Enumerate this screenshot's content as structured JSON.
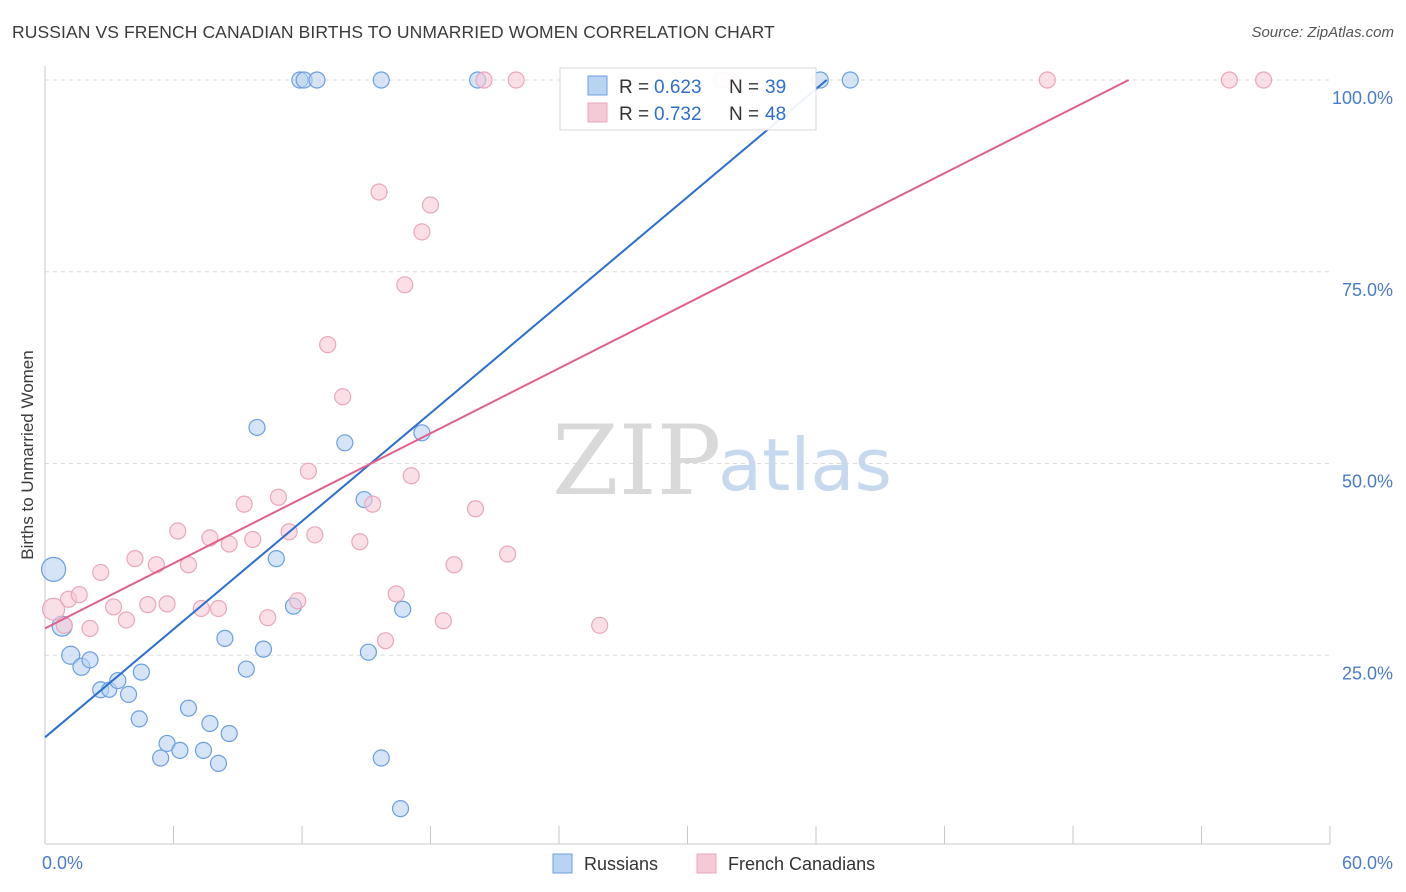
{
  "title": "RUSSIAN VS FRENCH CANADIAN BIRTHS TO UNMARRIED WOMEN CORRELATION CHART",
  "source": "Source: ZipAtlas.com",
  "watermark": {
    "zip": "ZIP",
    "atlas": "atlas"
  },
  "chart_data": {
    "type": "scatter",
    "ylabel": "Births to Unmarried Women",
    "xlim": [
      0,
      60
    ],
    "ylim": [
      0,
      100
    ],
    "x_ticks": [
      "0.0%",
      "60.0%"
    ],
    "y_ticks": [
      {
        "value": 25,
        "label": "25.0%"
      },
      {
        "value": 50,
        "label": "50.0%"
      },
      {
        "value": 75,
        "label": "75.0%"
      },
      {
        "value": 100,
        "label": "100.0%"
      }
    ],
    "grid": true,
    "legend_position": "top-center",
    "series": [
      {
        "name": "Russians",
        "color": "#6b9fe0",
        "fill": "#b9d3f2",
        "line_color": "#2a6fd0",
        "R": "0.623",
        "N": "39",
        "trend": [
          [
            0,
            14.3
          ],
          [
            36.5,
            100
          ]
        ],
        "points": [
          [
            0.4,
            36.2,
            24
          ],
          [
            0.8,
            28.8,
            20
          ],
          [
            1.2,
            25.0,
            18
          ],
          [
            1.7,
            23.5,
            17
          ],
          [
            2.1,
            24.4,
            16
          ],
          [
            2.6,
            20.5,
            16
          ],
          [
            3.0,
            20.5,
            15
          ],
          [
            3.4,
            21.7,
            16
          ],
          [
            3.9,
            19.9,
            16
          ],
          [
            4.5,
            22.8,
            16
          ],
          [
            4.4,
            16.7,
            16
          ],
          [
            5.4,
            11.6,
            16
          ],
          [
            5.7,
            13.5,
            16
          ],
          [
            6.3,
            12.6,
            16
          ],
          [
            6.7,
            18.1,
            16
          ],
          [
            7.4,
            12.6,
            16
          ],
          [
            7.7,
            16.1,
            16
          ],
          [
            8.1,
            10.9,
            16
          ],
          [
            8.4,
            27.2,
            16
          ],
          [
            8.6,
            14.8,
            16
          ],
          [
            9.4,
            23.2,
            16
          ],
          [
            9.9,
            54.7,
            16
          ],
          [
            10.2,
            25.8,
            16
          ],
          [
            10.8,
            37.6,
            16
          ],
          [
            11.6,
            31.4,
            16
          ],
          [
            11.9,
            100,
            16
          ],
          [
            12.1,
            100,
            16
          ],
          [
            12.7,
            100,
            16
          ],
          [
            14.0,
            52.7,
            16
          ],
          [
            14.9,
            45.3,
            16
          ],
          [
            15.1,
            25.4,
            16
          ],
          [
            15.7,
            100,
            16
          ],
          [
            15.7,
            11.6,
            16
          ],
          [
            16.6,
            5.0,
            16
          ],
          [
            16.7,
            31.0,
            16
          ],
          [
            17.6,
            54.0,
            16
          ],
          [
            20.2,
            100,
            16
          ],
          [
            36.2,
            100,
            16
          ],
          [
            37.6,
            100,
            16
          ]
        ]
      },
      {
        "name": "French Canadians",
        "color": "#e8a7bb",
        "fill": "#f6c9d6",
        "line_color": "#e0608b",
        "R": "0.732",
        "N": "48",
        "trend": [
          [
            0,
            28.5
          ],
          [
            50.6,
            100
          ]
        ],
        "points": [
          [
            0.4,
            31.0,
            22
          ],
          [
            0.9,
            28.9,
            16
          ],
          [
            1.1,
            32.3,
            16
          ],
          [
            1.6,
            32.9,
            16
          ],
          [
            2.1,
            28.5,
            16
          ],
          [
            2.6,
            35.8,
            16
          ],
          [
            3.2,
            31.3,
            16
          ],
          [
            3.8,
            29.6,
            16
          ],
          [
            4.2,
            37.6,
            16
          ],
          [
            4.8,
            31.6,
            16
          ],
          [
            5.2,
            36.8,
            16
          ],
          [
            5.7,
            31.7,
            16
          ],
          [
            6.2,
            41.2,
            16
          ],
          [
            6.7,
            36.8,
            16
          ],
          [
            7.3,
            31.1,
            16
          ],
          [
            7.7,
            40.3,
            16
          ],
          [
            8.1,
            31.1,
            16
          ],
          [
            8.6,
            39.5,
            16
          ],
          [
            9.3,
            44.7,
            16
          ],
          [
            9.7,
            40.1,
            16
          ],
          [
            10.4,
            29.9,
            16
          ],
          [
            10.9,
            45.6,
            16
          ],
          [
            11.4,
            41.1,
            16
          ],
          [
            11.8,
            32.1,
            16
          ],
          [
            12.3,
            49.0,
            16
          ],
          [
            12.6,
            40.7,
            16
          ],
          [
            13.2,
            65.5,
            16
          ],
          [
            13.9,
            58.7,
            16
          ],
          [
            14.7,
            39.8,
            16
          ],
          [
            15.3,
            44.7,
            16
          ],
          [
            15.6,
            85.4,
            16
          ],
          [
            15.9,
            26.9,
            16
          ],
          [
            16.4,
            33.0,
            16
          ],
          [
            16.8,
            73.3,
            16
          ],
          [
            17.1,
            48.4,
            16
          ],
          [
            17.6,
            80.2,
            16
          ],
          [
            18.0,
            83.7,
            16
          ],
          [
            18.6,
            29.5,
            16
          ],
          [
            19.1,
            36.8,
            16
          ],
          [
            20.1,
            44.1,
            16
          ],
          [
            20.5,
            100,
            16
          ],
          [
            21.6,
            38.2,
            16
          ],
          [
            22.0,
            100,
            16
          ],
          [
            25.9,
            28.9,
            16
          ],
          [
            31.6,
            100,
            16
          ],
          [
            46.8,
            100,
            16
          ],
          [
            55.3,
            100,
            16
          ],
          [
            56.9,
            100,
            16
          ]
        ]
      }
    ]
  }
}
